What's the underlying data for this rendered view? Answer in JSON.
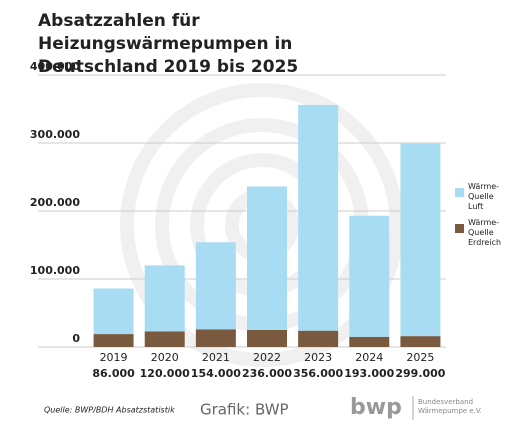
{
  "chart_data": {
    "type": "stacked_bar",
    "title": "Absatzzahlen für Heizungswärmepumpen in Deutschland 2019 bis 2025",
    "categories": [
      "2019",
      "2020",
      "2021",
      "2022",
      "2023",
      "2024",
      "2025"
    ],
    "series": [
      {
        "name": "Wärme-Quelle Erdreich",
        "color": "#7a5a3e",
        "values": [
          19000,
          23000,
          26000,
          25000,
          24000,
          15000,
          16000
        ]
      },
      {
        "name": "Wärme-Quelle Luft",
        "color": "#a8dcf3",
        "values": [
          67000,
          97000,
          128000,
          211000,
          332000,
          178000,
          283000
        ]
      }
    ],
    "totals": {
      "values": [
        86000,
        120000,
        154000,
        236000,
        356000,
        193000,
        299000
      ],
      "value_labels": [
        "86.000",
        "120.000",
        "154.000",
        "236.000",
        "356.000",
        "193.000",
        "299.000"
      ]
    },
    "ylim": [
      0,
      400000
    ],
    "yticks": [
      0,
      {
        "value": 100000,
        "label": "100.000"
      },
      {
        "value": 200000,
        "label": "200.000"
      },
      {
        "value": 300000,
        "label": "300.000"
      },
      {
        "value": 400000,
        "label": "400.000"
      }
    ],
    "grid": true,
    "source": "Quelle: BWP/BDH Absatzstatistik",
    "credit": "Grafik: BWP",
    "logo": "bwp",
    "logo_text": "Bundesverband Wärmepumpe e.V."
  }
}
